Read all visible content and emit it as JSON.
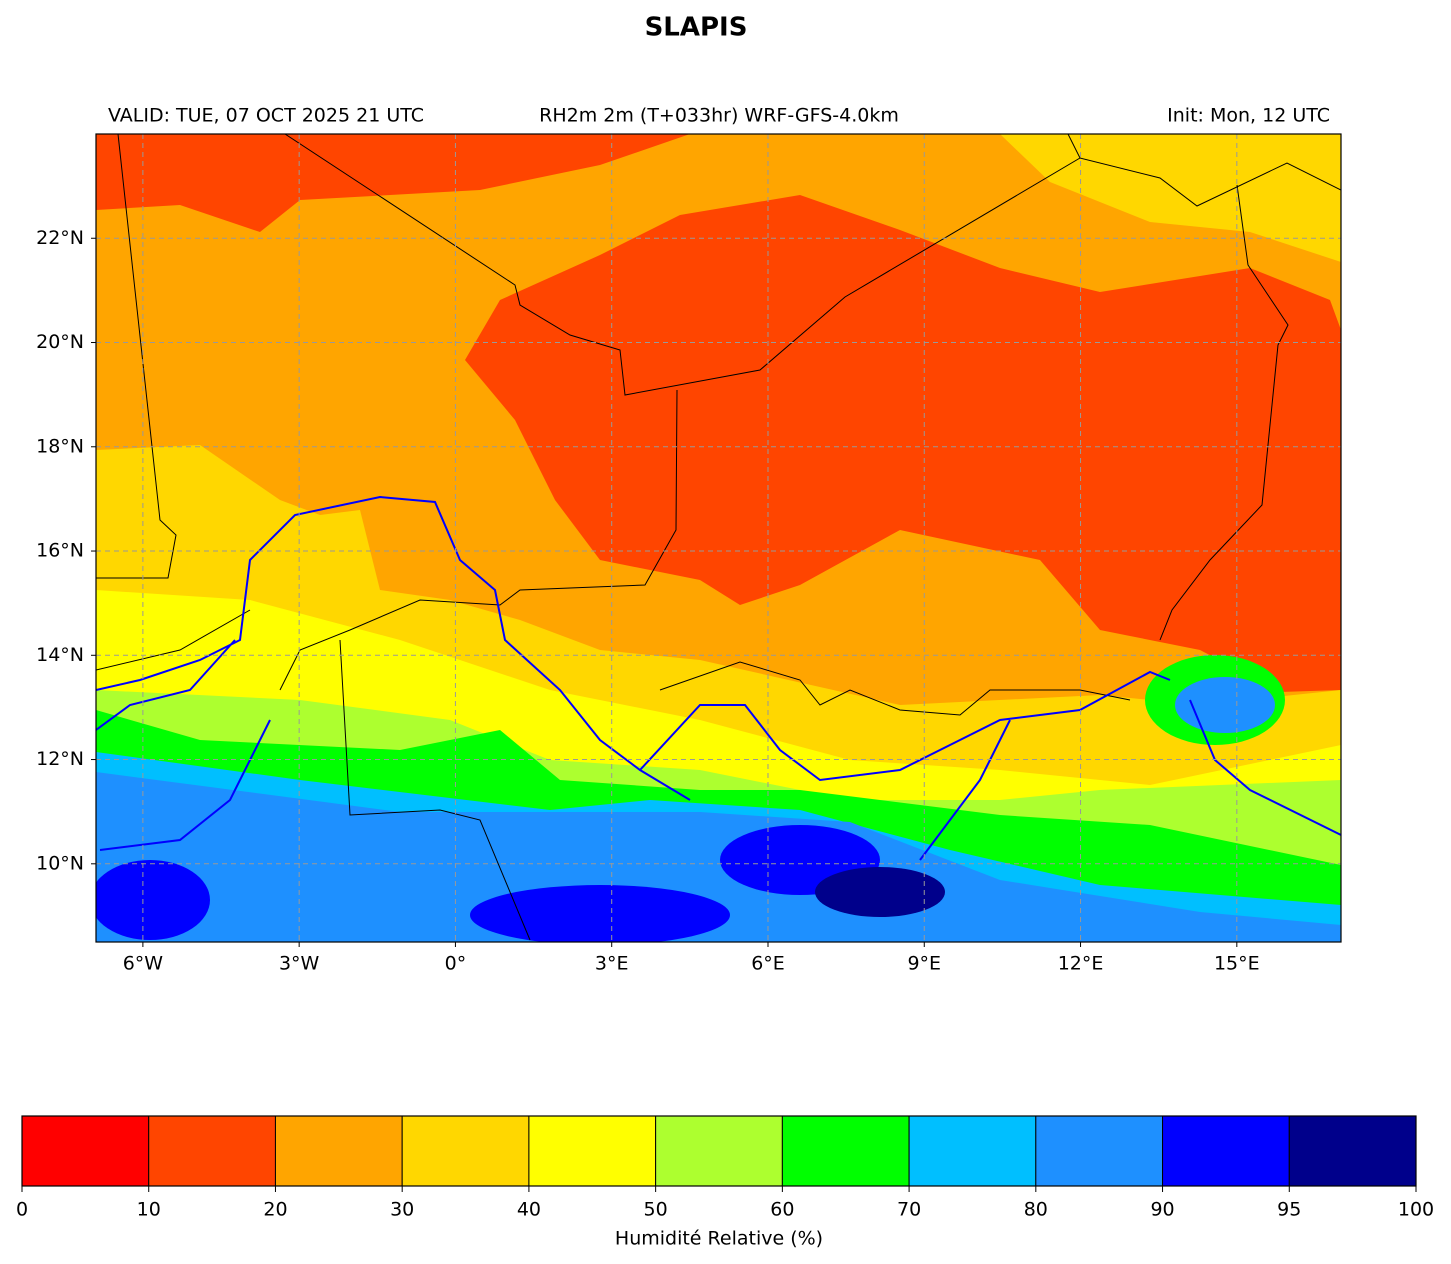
{
  "chart_data": {
    "type": "map",
    "title": "SLAPIS",
    "subtitle_left": "VALID: TUE, 07 OCT 2025 21 UTC",
    "subtitle_center": "RH2m 2m (T+033hr) WRF-GFS-4.0km",
    "subtitle_right": "Init: Mon, 12 UTC",
    "xlim": [
      -6.9,
      17.0
    ],
    "ylim": [
      8.5,
      24.0
    ],
    "xticks": [
      {
        "value": -6,
        "label": "6°W"
      },
      {
        "value": -3,
        "label": "3°W"
      },
      {
        "value": 0,
        "label": "0°"
      },
      {
        "value": 3,
        "label": "3°E"
      },
      {
        "value": 6,
        "label": "6°E"
      },
      {
        "value": 9,
        "label": "9°E"
      },
      {
        "value": 12,
        "label": "12°E"
      },
      {
        "value": 15,
        "label": "15°E"
      }
    ],
    "yticks": [
      {
        "value": 10,
        "label": "10°N"
      },
      {
        "value": 12,
        "label": "12°N"
      },
      {
        "value": 14,
        "label": "14°N"
      },
      {
        "value": 16,
        "label": "16°N"
      },
      {
        "value": 18,
        "label": "18°N"
      },
      {
        "value": 20,
        "label": "20°N"
      },
      {
        "value": 22,
        "label": "22°N"
      }
    ],
    "grid": true,
    "colorbar": {
      "label": "Humidité Relative (%)",
      "boundaries": [
        0,
        10,
        20,
        30,
        40,
        50,
        60,
        70,
        80,
        90,
        95,
        100
      ],
      "colors": [
        "#ff0000",
        "#ff4500",
        "#ffa500",
        "#ffd700",
        "#ffff00",
        "#adff2f",
        "#00ff00",
        "#00bfff",
        "#1e90ff",
        "#0000ff",
        "#00008b"
      ]
    }
  }
}
